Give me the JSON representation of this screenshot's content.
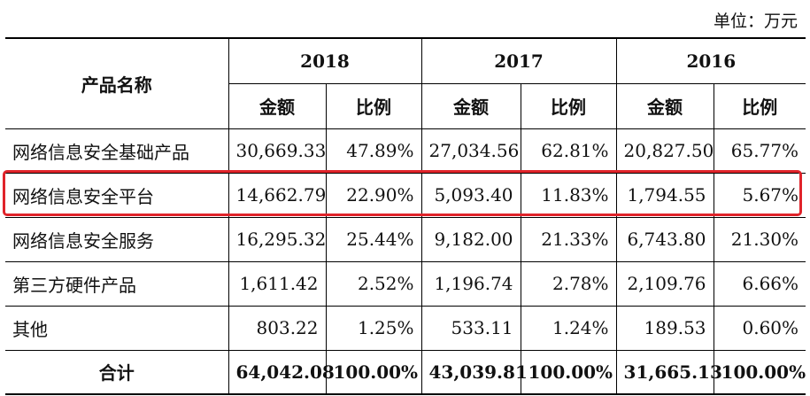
{
  "unit_label": "单位：万元",
  "header": {
    "product_name": "产品名称",
    "years": [
      "2018",
      "2017",
      "2016"
    ],
    "amount_label": "金额",
    "ratio_label": "比例"
  },
  "rows": [
    {
      "name": "网络信息安全基础产品",
      "values": [
        "30,669.33",
        "47.89%",
        "27,034.56",
        "62.81%",
        "20,827.50",
        "65.77%"
      ]
    },
    {
      "name": "网络信息安全平台",
      "values": [
        "14,662.79",
        "22.90%",
        "5,093.40",
        "11.83%",
        "1,794.55",
        "5.67%"
      ]
    },
    {
      "name": "网络信息安全服务",
      "values": [
        "16,295.32",
        "25.44%",
        "9,182.00",
        "21.33%",
        "6,743.80",
        "21.30%"
      ]
    },
    {
      "name": "第三方硬件产品",
      "values": [
        "1,611.42",
        "2.52%",
        "1,196.74",
        "2.78%",
        "2,109.76",
        "6.66%"
      ]
    },
    {
      "name": "其他",
      "values": [
        "803.22",
        "1.25%",
        "533.11",
        "1.24%",
        "189.53",
        "0.60%"
      ]
    }
  ],
  "total": {
    "name": "合计",
    "values": [
      "64,042.08",
      "100.00%",
      "43,039.81",
      "100.00%",
      "31,665.13",
      "100.00%"
    ]
  },
  "highlight_color": "#e0232a",
  "highlighted_row": "网络信息安全平台"
}
